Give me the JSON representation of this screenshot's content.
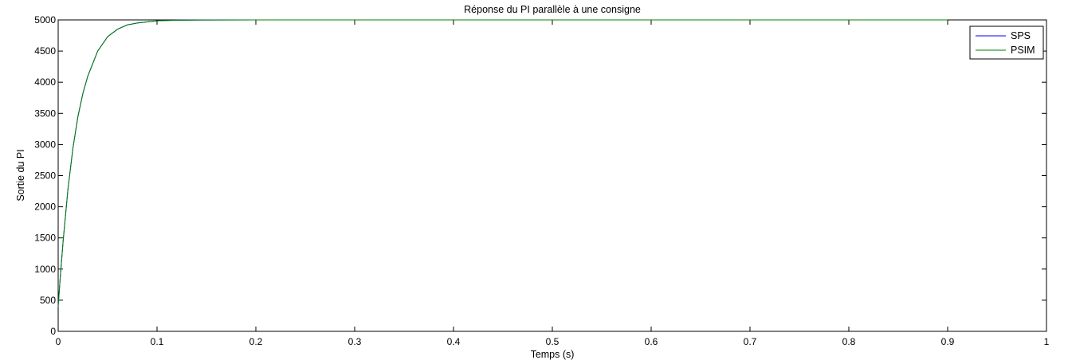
{
  "chart_data": {
    "type": "line",
    "title": "Réponse du PI parallèle à une consigne",
    "xlabel": "Temps (s)",
    "ylabel": "Sortie du PI",
    "xlim": [
      0,
      1
    ],
    "ylim": [
      0,
      5000
    ],
    "xticks": [
      0,
      0.1,
      0.2,
      0.3,
      0.4,
      0.5,
      0.6,
      0.7,
      0.8,
      0.9,
      1
    ],
    "xtick_labels": [
      "0",
      "0.1",
      "0.2",
      "0.3",
      "0.4",
      "0.5",
      "0.6",
      "0.7",
      "0.8",
      "0.9",
      "1"
    ],
    "yticks": [
      0,
      500,
      1000,
      1500,
      2000,
      2500,
      3000,
      3500,
      4000,
      4500,
      5000
    ],
    "ytick_labels": [
      "0",
      "500",
      "1000",
      "1500",
      "2000",
      "2500",
      "3000",
      "3500",
      "4000",
      "4500",
      "5000"
    ],
    "grid": false,
    "legend_position": "top-right",
    "x": [
      0,
      0.002,
      0.005,
      0.01,
      0.015,
      0.02,
      0.025,
      0.03,
      0.04,
      0.05,
      0.06,
      0.07,
      0.08,
      0.1,
      0.12,
      0.15,
      0.2,
      0.3,
      0.5,
      0.7,
      0.9
    ],
    "series": [
      {
        "name": "SPS",
        "color": "#0000ff",
        "values": [
          400,
          850,
          1450,
          2300,
          2950,
          3450,
          3820,
          4100,
          4500,
          4730,
          4850,
          4920,
          4950,
          4985,
          4995,
          4999,
          5000,
          5000,
          5000,
          5000,
          5000
        ]
      },
      {
        "name": "PSIM",
        "color": "#008000",
        "values": [
          400,
          850,
          1450,
          2300,
          2950,
          3450,
          3820,
          4100,
          4500,
          4730,
          4850,
          4920,
          4950,
          4985,
          4995,
          4999,
          5000,
          5000,
          5000,
          5000,
          5000
        ]
      }
    ]
  }
}
